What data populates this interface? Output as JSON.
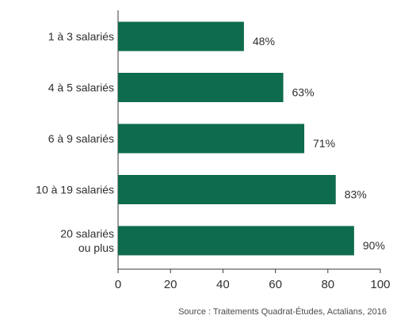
{
  "chart_data": {
    "type": "bar",
    "orientation": "horizontal",
    "categories": [
      [
        "1 à 3 salariés"
      ],
      [
        "4 à 5 salariés"
      ],
      [
        "6 à 9 salariés"
      ],
      [
        "10 à 19 salariés"
      ],
      [
        "20 salariés",
        "ou plus"
      ]
    ],
    "values": [
      48,
      63,
      71,
      83,
      90
    ],
    "value_labels": [
      "48%",
      "63%",
      "71%",
      "83%",
      "90%"
    ],
    "xlim": [
      0,
      100
    ],
    "xticks": [
      0,
      20,
      40,
      60,
      80,
      100
    ],
    "xtick_labels": [
      "0",
      "20",
      "40",
      "60",
      "80",
      "100"
    ],
    "grid": false,
    "bar_color": "#0e6b4e"
  },
  "source": "Source : Traitements Quadrat-Études, Actalians, 2016"
}
